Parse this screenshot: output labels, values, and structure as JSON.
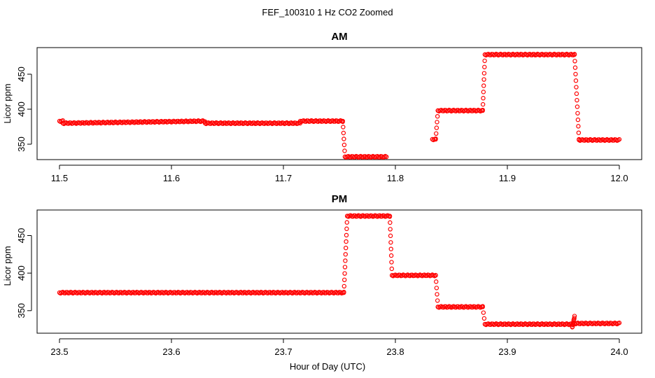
{
  "figure": {
    "title": "FEF_100310  1 Hz CO2 Zoomed",
    "xlabel": "Hour of Day (UTC)"
  },
  "colors": {
    "points": "#ff0000",
    "axis": "#000000",
    "background": "#ffffff"
  },
  "chart_data": [
    {
      "type": "scatter",
      "title": "AM",
      "ylabel": "Licor ppm",
      "xlim": [
        11.48,
        12.02
      ],
      "ylim": [
        328,
        488
      ],
      "x_ticks": [
        11.5,
        11.6,
        11.7,
        11.8,
        11.9,
        12.0
      ],
      "x_tick_labels": [
        "11.5",
        "11.6",
        "11.7",
        "11.8",
        "11.9",
        "12.0"
      ],
      "y_ticks": [
        350,
        400,
        450
      ],
      "y_tick_labels": [
        "350",
        "400",
        "450"
      ],
      "marker": "open-circle",
      "color": "#ff0000",
      "segments": [
        {
          "x": [
            11.5,
            11.503
          ],
          "y": [
            383,
            383
          ]
        },
        {
          "x": [
            11.503,
            11.63
          ],
          "y": [
            380,
            383
          ]
        },
        {
          "x": [
            11.63,
            11.715
          ],
          "y": [
            380,
            380
          ]
        },
        {
          "x": [
            11.715,
            11.753
          ],
          "y": [
            383,
            383
          ]
        },
        {
          "x": [
            11.753,
            11.755
          ],
          "y": [
            383,
            332
          ]
        },
        {
          "x": [
            11.755,
            11.792
          ],
          "y": [
            332,
            332
          ]
        },
        {
          "x": [
            11.833,
            11.836
          ],
          "y": [
            357,
            357
          ]
        },
        {
          "x": [
            11.836,
            11.838
          ],
          "y": [
            357,
            398
          ]
        },
        {
          "x": [
            11.838,
            11.878
          ],
          "y": [
            398,
            398
          ]
        },
        {
          "x": [
            11.878,
            11.88
          ],
          "y": [
            398,
            478
          ]
        },
        {
          "x": [
            11.88,
            11.96
          ],
          "y": [
            478,
            478
          ]
        },
        {
          "x": [
            11.96,
            11.964
          ],
          "y": [
            478,
            357
          ]
        },
        {
          "x": [
            11.964,
            12.0
          ],
          "y": [
            356,
            356
          ]
        }
      ]
    },
    {
      "type": "scatter",
      "title": "PM",
      "ylabel": "Licor ppm",
      "xlim": [
        23.48,
        24.02
      ],
      "ylim": [
        320,
        484
      ],
      "x_ticks": [
        23.5,
        23.6,
        23.7,
        23.8,
        23.9,
        24.0
      ],
      "x_tick_labels": [
        "23.5",
        "23.6",
        "23.7",
        "23.8",
        "23.9",
        "24.0"
      ],
      "y_ticks": [
        350,
        400,
        450
      ],
      "y_tick_labels": [
        "350",
        "400",
        "450"
      ],
      "marker": "open-circle",
      "color": "#ff0000",
      "segments": [
        {
          "x": [
            23.5,
            23.754
          ],
          "y": [
            374,
            374
          ]
        },
        {
          "x": [
            23.754,
            23.757
          ],
          "y": [
            374,
            476
          ]
        },
        {
          "x": [
            23.757,
            23.795
          ],
          "y": [
            476,
            476
          ]
        },
        {
          "x": [
            23.795,
            23.797
          ],
          "y": [
            476,
            397
          ]
        },
        {
          "x": [
            23.797,
            23.836
          ],
          "y": [
            397,
            397
          ]
        },
        {
          "x": [
            23.836,
            23.838
          ],
          "y": [
            397,
            355
          ]
        },
        {
          "x": [
            23.838,
            23.878
          ],
          "y": [
            355,
            355
          ]
        },
        {
          "x": [
            23.878,
            23.88
          ],
          "y": [
            355,
            332
          ]
        },
        {
          "x": [
            23.88,
            23.958
          ],
          "y": [
            332,
            332
          ]
        },
        {
          "x": [
            23.958,
            23.96
          ],
          "y": [
            328,
            342
          ]
        },
        {
          "x": [
            23.96,
            24.0
          ],
          "y": [
            333,
            333
          ]
        }
      ]
    }
  ]
}
